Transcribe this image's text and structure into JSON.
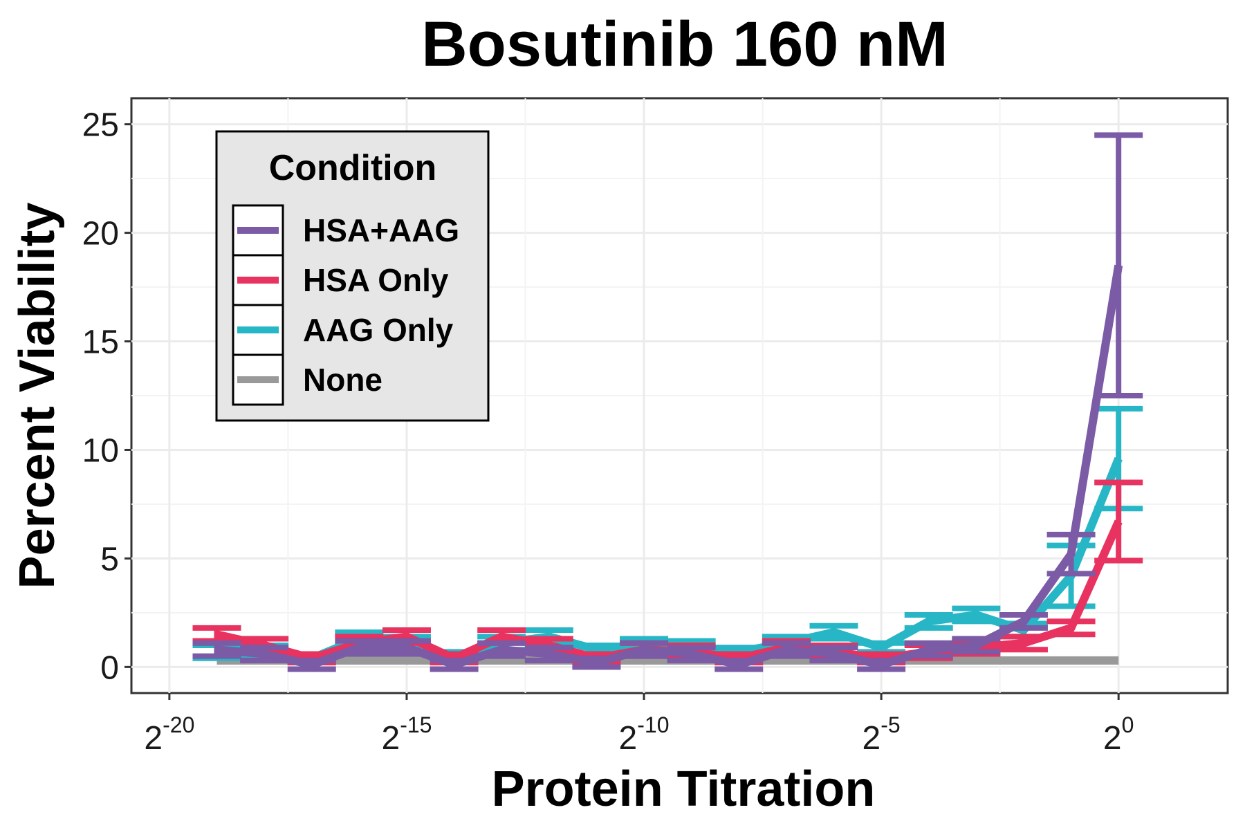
{
  "chart_data": {
    "type": "line",
    "title": "Bosutinib 160 nM",
    "xlabel": "Protein Titration",
    "ylabel": "Percent Viability",
    "x_scale": "log2",
    "x_ticks": [
      {
        "base": "2",
        "exp": "-20"
      },
      {
        "base": "2",
        "exp": "-15"
      },
      {
        "base": "2",
        "exp": "-10"
      },
      {
        "base": "2",
        "exp": "-5"
      },
      {
        "base": "2",
        "exp": "0"
      }
    ],
    "y_ticks": [
      "0",
      "5",
      "10",
      "15",
      "20",
      "25"
    ],
    "ylim": [
      -1.2,
      26.2
    ],
    "grid": true,
    "legend": {
      "title": "Condition",
      "position": "top-left"
    },
    "x": [
      -19,
      -18,
      -17,
      -16,
      -15,
      -14,
      -13,
      -12,
      -11,
      -10,
      -9,
      -8,
      -7,
      -6,
      -5,
      -4,
      -3,
      -2,
      -1,
      0
    ],
    "series": [
      {
        "name": "HSA+AAG",
        "color": "#7b5aa6",
        "values": [
          0.8,
          0.6,
          0.1,
          0.9,
          0.9,
          0.1,
          0.8,
          0.6,
          0.2,
          0.8,
          0.6,
          0.1,
          0.8,
          0.6,
          0.1,
          0.8,
          1.0,
          2.1,
          5.2,
          18.5
        ],
        "error": [
          0.3,
          0.3,
          0.2,
          0.3,
          0.3,
          0.2,
          0.3,
          0.3,
          0.2,
          0.3,
          0.3,
          0.2,
          0.3,
          0.3,
          0.2,
          0.3,
          0.3,
          0.3,
          0.9,
          6.0
        ]
      },
      {
        "name": "HSA Only",
        "color": "#e8325f",
        "values": [
          1.5,
          1.0,
          0.4,
          1.1,
          1.4,
          0.4,
          1.4,
          1.0,
          0.4,
          0.8,
          0.7,
          0.4,
          0.9,
          0.7,
          0.4,
          0.7,
          0.9,
          1.1,
          1.8,
          6.7
        ],
        "error": [
          0.3,
          0.3,
          0.2,
          0.3,
          0.3,
          0.2,
          0.3,
          0.3,
          0.2,
          0.3,
          0.3,
          0.2,
          0.3,
          0.3,
          0.2,
          0.3,
          0.3,
          0.3,
          0.3,
          1.8
        ]
      },
      {
        "name": "AAG Only",
        "color": "#27b6c6",
        "values": [
          0.7,
          0.7,
          0.4,
          1.3,
          1.1,
          0.5,
          1.1,
          1.4,
          0.8,
          1.0,
          0.9,
          0.7,
          1.1,
          1.6,
          0.9,
          2.1,
          2.4,
          1.7,
          4.2,
          9.6
        ],
        "error": [
          0.3,
          0.3,
          0.2,
          0.3,
          0.3,
          0.2,
          0.3,
          0.3,
          0.2,
          0.3,
          0.3,
          0.2,
          0.3,
          0.3,
          0.2,
          0.3,
          0.3,
          0.3,
          1.4,
          2.3
        ]
      },
      {
        "name": "None",
        "color": "#999999",
        "values": [
          0.3,
          0.3,
          0.3,
          0.3,
          0.3,
          0.3,
          0.3,
          0.3,
          0.3,
          0.3,
          0.3,
          0.3,
          0.3,
          0.3,
          0.3,
          0.3,
          0.3,
          0.3,
          0.3,
          0.3
        ],
        "error": [
          0,
          0,
          0,
          0,
          0,
          0,
          0,
          0,
          0,
          0,
          0,
          0,
          0,
          0,
          0,
          0,
          0,
          0,
          0,
          0
        ]
      }
    ]
  }
}
